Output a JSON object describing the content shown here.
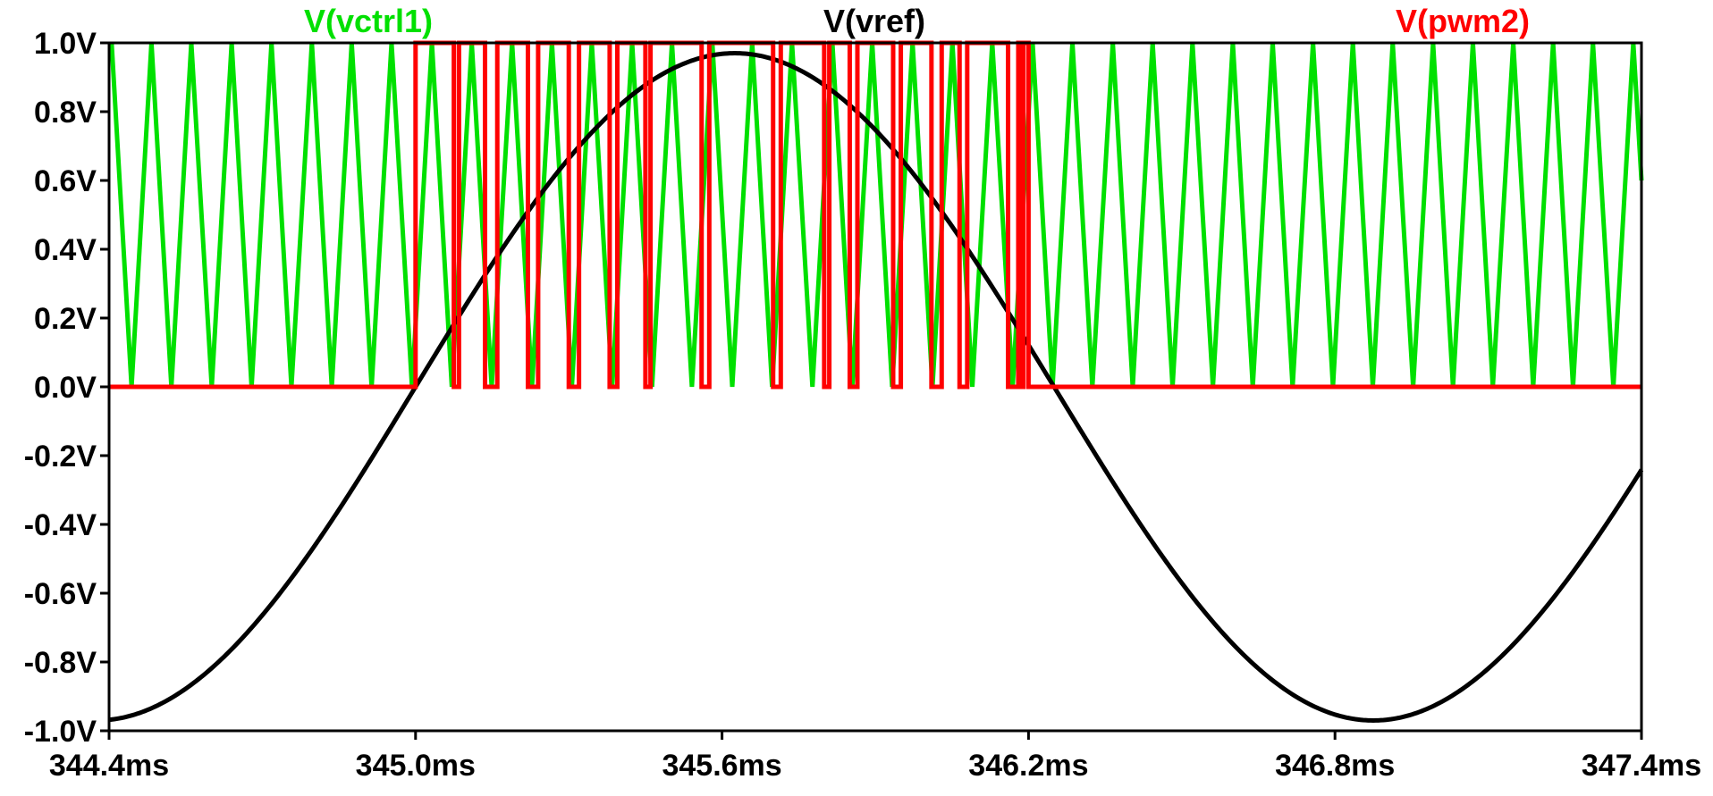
{
  "chart_data": {
    "type": "line",
    "title": "",
    "xlabel": "",
    "ylabel": "",
    "x_unit": "ms",
    "y_unit": "V",
    "xlim": [
      344.4,
      347.4
    ],
    "ylim": [
      -1.0,
      1.0
    ],
    "x_ticks": [
      "344.4ms",
      "345.0ms",
      "345.6ms",
      "346.2ms",
      "346.8ms",
      "347.4ms"
    ],
    "x_tick_values": [
      344.4,
      345.0,
      345.6,
      346.2,
      346.8,
      347.4
    ],
    "y_ticks": [
      "1.0V",
      "0.8V",
      "0.6V",
      "0.4V",
      "0.2V",
      "0.0V",
      "-0.2V",
      "-0.4V",
      "-0.6V",
      "-0.8V",
      "-1.0V"
    ],
    "y_tick_values": [
      1.0,
      0.8,
      0.6,
      0.4,
      0.2,
      0.0,
      -0.2,
      -0.4,
      -0.6,
      -0.8,
      -1.0
    ],
    "grid": false,
    "legend_position": "top",
    "series": [
      {
        "name": "V(vctrl1)",
        "color": "#00e000",
        "kind": "triangle",
        "period_ms": 0.0784,
        "min": 0.0,
        "max": 1.0,
        "first_peak_ms": 344.405,
        "x": [
          344.405,
          344.444,
          344.483,
          344.522,
          344.561,
          344.601,
          344.64,
          344.679,
          344.718,
          344.757,
          344.797,
          344.836,
          344.875,
          344.914,
          344.953,
          344.993,
          345.032,
          345.071,
          345.11,
          345.149,
          345.189,
          345.228,
          345.267,
          345.306,
          345.345,
          345.385,
          345.424,
          345.463,
          345.502,
          345.541,
          345.581,
          345.62,
          345.659,
          345.698,
          345.737,
          345.777,
          345.816,
          345.855,
          345.894,
          345.933,
          345.973,
          346.012,
          346.051,
          346.09,
          346.129,
          346.169,
          346.208,
          346.247,
          346.286,
          346.325,
          346.365,
          346.404,
          346.443,
          346.482,
          346.521,
          346.561,
          346.6,
          346.639,
          346.678,
          346.717,
          346.757,
          346.796,
          346.835,
          346.874,
          346.913,
          346.953,
          346.992,
          347.031,
          347.07,
          347.109,
          347.149,
          347.188,
          347.227,
          347.266,
          347.305,
          347.345,
          347.384,
          347.4
        ],
        "y": [
          1.0,
          0.0,
          1.0,
          0.0,
          1.0,
          0.0,
          1.0,
          0.0,
          1.0,
          0.0,
          1.0,
          0.0,
          1.0,
          0.0,
          1.0,
          0.0,
          1.0,
          0.0,
          1.0,
          0.0,
          1.0,
          0.0,
          1.0,
          0.0,
          1.0,
          0.0,
          1.0,
          0.0,
          1.0,
          0.0,
          1.0,
          0.0,
          1.0,
          0.0,
          1.0,
          0.0,
          1.0,
          0.0,
          1.0,
          0.0,
          1.0,
          0.0,
          1.0,
          0.0,
          1.0,
          0.0,
          1.0,
          0.0,
          1.0,
          0.0,
          1.0,
          0.0,
          1.0,
          0.0,
          1.0,
          0.0,
          1.0,
          0.0,
          1.0,
          0.0,
          1.0,
          0.0,
          1.0,
          0.0,
          1.0,
          0.0,
          1.0,
          0.0,
          1.0,
          0.0,
          1.0,
          0.0,
          1.0,
          0.0,
          1.0,
          0.0,
          1.0,
          0.6
        ]
      },
      {
        "name": "V(vref)",
        "color": "#000000",
        "kind": "sine",
        "amplitude": 0.97,
        "frequency_hz": 400,
        "peak_ms": 345.625,
        "x": [
          344.4,
          344.55,
          344.7,
          344.85,
          345.0,
          345.15,
          345.3,
          345.45,
          345.625,
          345.8,
          345.95,
          346.1,
          346.25,
          346.4,
          346.55,
          346.7,
          346.875,
          347.05,
          347.2,
          347.4
        ],
        "y": [
          -0.97,
          -0.84,
          -0.63,
          -0.33,
          0.0,
          0.33,
          0.63,
          0.85,
          0.97,
          0.85,
          0.63,
          0.33,
          -0.02,
          -0.36,
          -0.66,
          -0.87,
          -0.97,
          -0.85,
          -0.6,
          -0.24
        ]
      },
      {
        "name": "V(pwm2)",
        "color": "#ff0000",
        "kind": "pwm",
        "low": 0.0,
        "high": 1.0,
        "segments_high": [
          [
            345.0,
            345.075
          ],
          [
            345.085,
            345.136
          ],
          [
            345.16,
            345.22
          ],
          [
            345.24,
            345.3
          ],
          [
            345.32,
            345.38
          ],
          [
            345.395,
            345.45
          ],
          [
            345.46,
            345.56
          ],
          [
            345.575,
            345.7
          ],
          [
            345.715,
            345.8
          ],
          [
            345.81,
            345.85
          ],
          [
            345.865,
            345.935
          ],
          [
            345.95,
            346.01
          ],
          [
            346.03,
            346.065
          ],
          [
            346.08,
            346.16
          ],
          [
            346.18,
            346.185
          ],
          [
            346.19,
            346.2
          ]
        ]
      }
    ]
  }
}
